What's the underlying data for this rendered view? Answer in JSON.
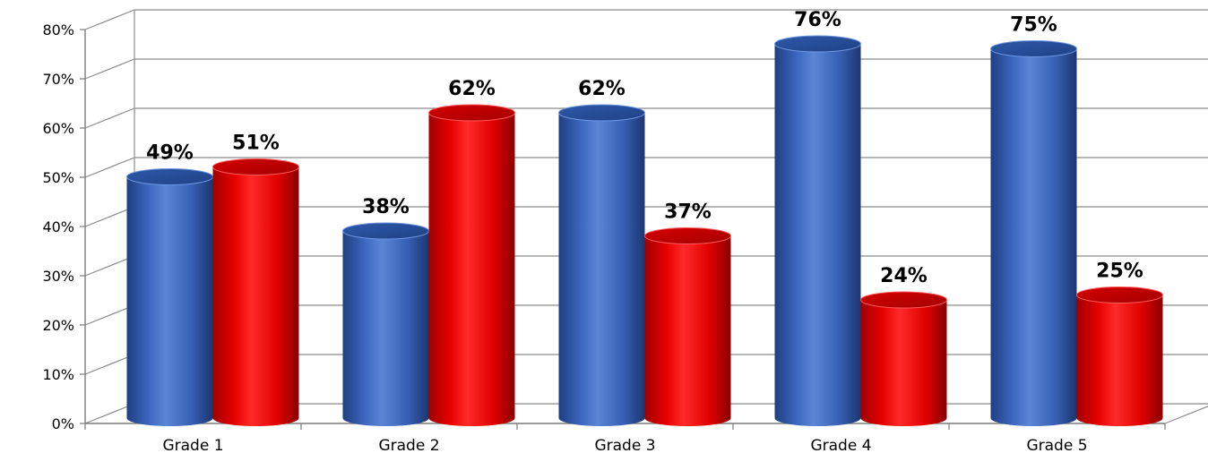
{
  "chart_data": {
    "type": "bar",
    "style": "3d-cylinder",
    "title": "",
    "xlabel": "",
    "ylabel": "",
    "ylim": [
      0,
      80
    ],
    "yticks": [
      "0%",
      "10%",
      "20%",
      "30%",
      "40%",
      "50%",
      "60%",
      "70%",
      "80%"
    ],
    "grid": true,
    "legend": "none",
    "categories": [
      "Grade 1",
      "Grade 2",
      "Grade 3",
      "Grade 4",
      "Grade 5"
    ],
    "series": [
      {
        "color": "#3F6EC6",
        "values": [
          49,
          38,
          62,
          76,
          75
        ],
        "labels": [
          "49%",
          "38%",
          "62%",
          "76%",
          "75%"
        ]
      },
      {
        "color": "#FF0000",
        "values": [
          51,
          62,
          37,
          24,
          25
        ],
        "labels": [
          "51%",
          "62%",
          "37%",
          "24%",
          "25%"
        ]
      }
    ]
  }
}
